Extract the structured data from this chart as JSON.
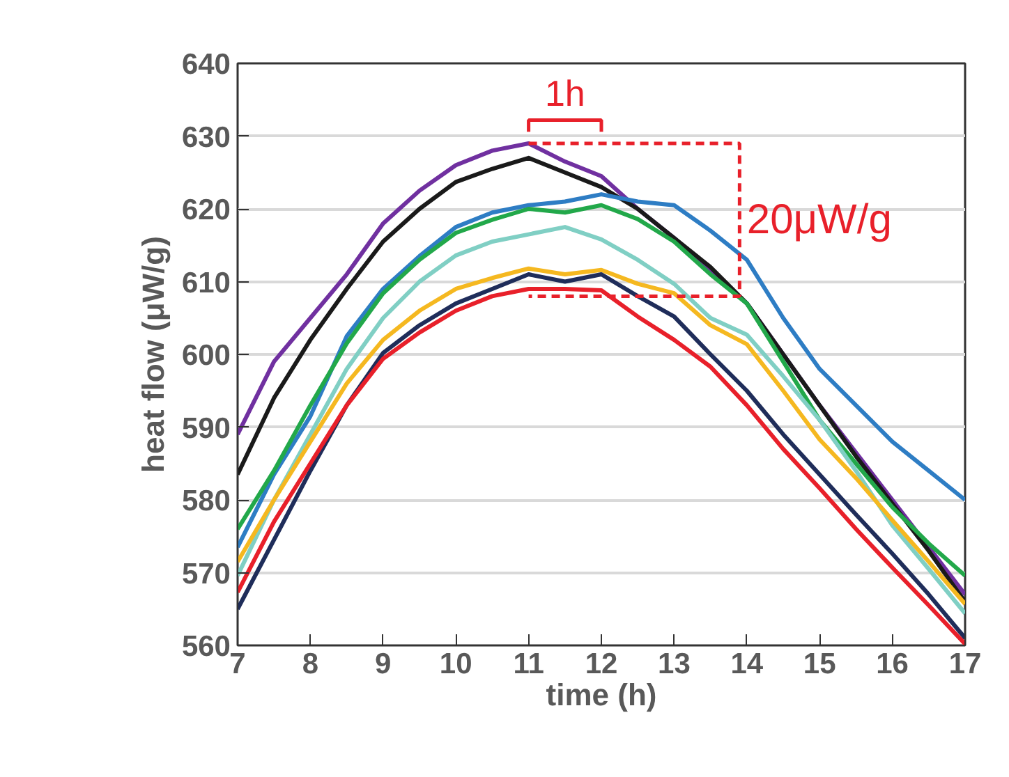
{
  "chart_data": {
    "type": "line",
    "xlabel": "time (h)",
    "ylabel": "heat flow (μW/g)",
    "x": [
      7,
      7.5,
      8,
      8.5,
      9,
      9.5,
      10,
      10.5,
      11,
      11.5,
      12,
      12.5,
      13,
      13.5,
      14,
      14.5,
      15,
      15.5,
      16,
      16.5,
      17
    ],
    "series": [
      {
        "color": "#7030a0",
        "values": [
          589,
          599,
          605,
          611,
          618,
          622.5,
          626,
          628,
          629,
          626.5,
          624.5,
          620,
          616,
          611.5,
          607,
          600,
          593,
          586.5,
          580,
          573.5,
          567
        ]
      },
      {
        "color": "#1a1a1a",
        "values": [
          583.5,
          594,
          602,
          609,
          615.5,
          620,
          623.7,
          625.5,
          627,
          625,
          623,
          620,
          616,
          612,
          607,
          600,
          593,
          586,
          579.5,
          573,
          566
        ]
      },
      {
        "color": "#2e7dc4",
        "values": [
          573.5,
          583.5,
          591.5,
          602.5,
          609,
          613.5,
          617.5,
          619.5,
          620.5,
          621,
          622,
          621,
          620.5,
          617,
          613,
          605,
          598,
          593,
          588,
          584,
          580
        ]
      },
      {
        "color": "#22a84a",
        "values": [
          576,
          584,
          593,
          601.5,
          608.4,
          613,
          616.7,
          618.5,
          620,
          619.5,
          620.5,
          618.6,
          615.5,
          611,
          607,
          599,
          591,
          585,
          579,
          574,
          569.6
        ]
      },
      {
        "color": "#80cfc4",
        "values": [
          569.6,
          580,
          589,
          598,
          605,
          610,
          613.6,
          615.5,
          616.5,
          617.5,
          615.8,
          613,
          609.7,
          605,
          602.7,
          597,
          591,
          584,
          576.5,
          570.5,
          564.4
        ]
      },
      {
        "color": "#f5b820",
        "values": [
          571.5,
          580,
          588,
          596,
          602,
          606,
          609,
          610.5,
          611.8,
          611,
          611.6,
          609.7,
          608.4,
          604,
          601.4,
          595,
          588.3,
          583,
          577.2,
          571.5,
          565.7
        ]
      },
      {
        "color": "#1f2d5a",
        "values": [
          565,
          574.5,
          584,
          593,
          600.2,
          604,
          607,
          609,
          611,
          610,
          611,
          608,
          605.2,
          600,
          595,
          589,
          583.5,
          578,
          572.6,
          567,
          561
        ]
      },
      {
        "color": "#e8202a",
        "values": [
          567.3,
          577,
          585,
          593,
          599.4,
          603,
          606,
          608,
          609,
          609,
          608.8,
          605.2,
          602,
          598.3,
          593,
          587,
          581.6,
          576,
          570.7,
          565.5,
          560.2
        ]
      }
    ],
    "xlim": [
      7,
      17
    ],
    "xticks": [
      7,
      8,
      9,
      10,
      11,
      12,
      13,
      14,
      15,
      16,
      17
    ],
    "ylim": [
      560,
      640
    ],
    "yticks": [
      560,
      570,
      580,
      590,
      600,
      610,
      620,
      630,
      640
    ],
    "grid": "y",
    "line_style": "solid",
    "annotations": [
      {
        "text": "1h",
        "x": 11,
        "y": 629
      },
      {
        "text": "20μW/g",
        "x": 13.9,
        "y": 608
      }
    ]
  }
}
